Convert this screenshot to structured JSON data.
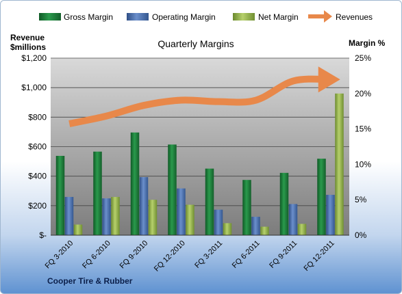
{
  "chart_data": {
    "type": "bar",
    "title": "Quarterly Margins",
    "footer": "Cooper Tire & Rubber",
    "categories": [
      "FQ 3-2010",
      "FQ 6-2010",
      "FQ 9-2010",
      "FQ 12-2010",
      "FQ 3-2011",
      "FQ 6-2011",
      "FQ 9-2011",
      "FQ 12-2011"
    ],
    "left_axis": {
      "label_line1": "Revenue",
      "label_line2": "$millions",
      "range": [
        0,
        1200
      ],
      "ticks": [
        0,
        200,
        400,
        600,
        800,
        1000,
        1200
      ],
      "tick_labels": [
        "$-",
        "$200",
        "$400",
        "$600",
        "$800",
        "$1,000",
        "$1,200"
      ]
    },
    "right_axis": {
      "label": "Margin %",
      "range": [
        0,
        25
      ],
      "ticks": [
        0,
        5,
        10,
        15,
        20,
        25
      ],
      "tick_labels": [
        "0%",
        "5%",
        "10%",
        "15%",
        "20%",
        "25%"
      ]
    },
    "series": [
      {
        "name": "Gross Margin",
        "axis": "right",
        "color": "#1e7a3c",
        "values": [
          11.2,
          11.8,
          14.5,
          12.8,
          9.4,
          7.8,
          8.8,
          10.8
        ]
      },
      {
        "name": "Operating Margin",
        "axis": "right",
        "color": "#4a72b0",
        "values": [
          5.4,
          5.2,
          8.2,
          6.6,
          3.6,
          2.6,
          4.4,
          5.7
        ]
      },
      {
        "name": "Net Margin",
        "axis": "right",
        "color": "#8eaf45",
        "values": [
          1.5,
          5.4,
          5.0,
          4.3,
          1.7,
          1.2,
          1.6,
          20.0
        ]
      },
      {
        "name": "Revenues",
        "axis": "left",
        "color": "#e8884a",
        "type": "line",
        "values": [
          755,
          808,
          880,
          915,
          905,
          915,
          1045,
          1055
        ]
      }
    ],
    "grid": true,
    "legend_position": "top"
  }
}
